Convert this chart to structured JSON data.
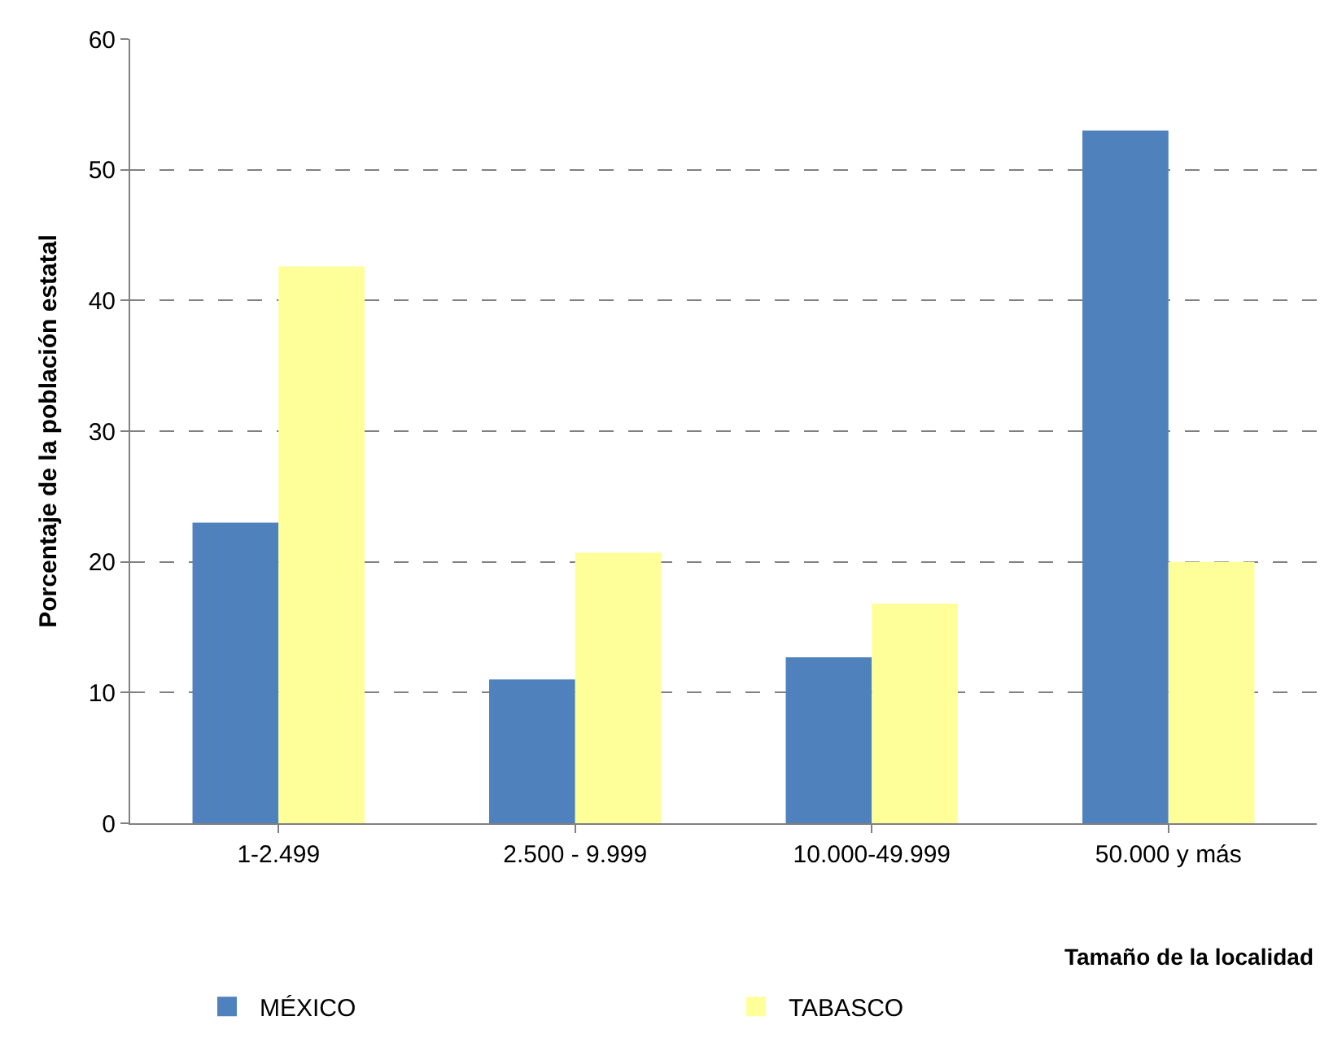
{
  "chart_data": {
    "type": "bar",
    "xlabel": "Tamaño de la localidad",
    "ylabel": "Porcentaje de la población estatal",
    "categories": [
      "1-2.499",
      "2.500 - 9.999",
      "10.000-49.999",
      "50.000 y más"
    ],
    "series": [
      {
        "name": "MÉXICO",
        "color": "#4f81bd",
        "values": [
          23.0,
          11.0,
          12.7,
          53.0
        ]
      },
      {
        "name": "TABASCO",
        "color": "#ffff99",
        "values": [
          42.6,
          20.7,
          16.8,
          20.0
        ]
      }
    ],
    "ylim": [
      0,
      60
    ],
    "yticks": [
      0,
      10,
      20,
      30,
      40,
      50,
      60
    ],
    "grid": "y",
    "legend": "bottom"
  }
}
